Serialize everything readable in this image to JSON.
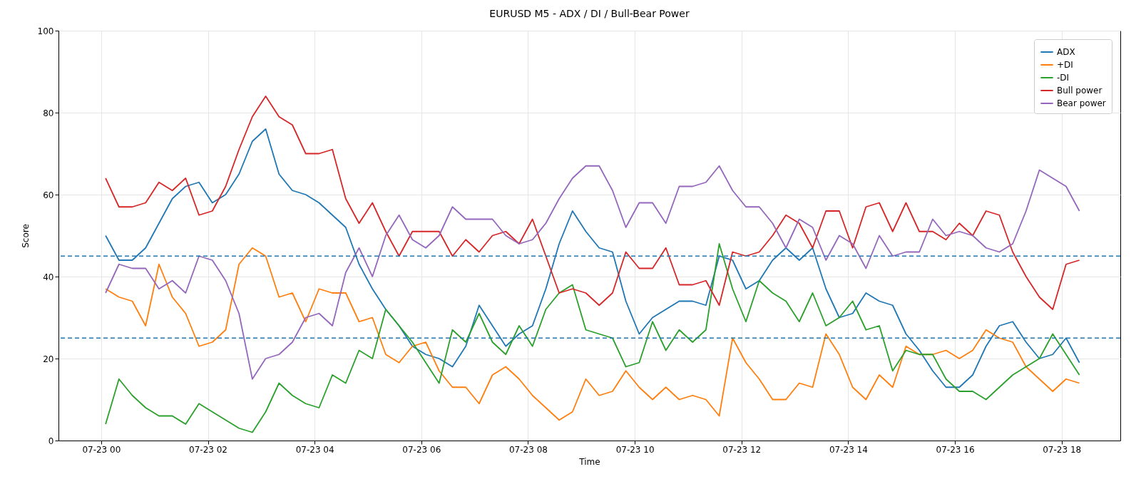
{
  "chart_data": {
    "type": "line",
    "title": "EURUSD M5 - ADX / DI / Bull-Bear Power",
    "xlabel": "Time",
    "ylabel": "Score",
    "x": [
      "--07-23T00:05",
      "--07-23T00:20",
      "--07-23T00:35",
      "--07-23T00:50",
      "--07-23T01:05",
      "--07-23T01:20",
      "--07-23T01:35",
      "--07-23T01:50",
      "--07-23T02:05",
      "--07-23T02:20",
      "--07-23T02:35",
      "--07-23T02:50",
      "--07-23T03:05",
      "--07-23T03:20",
      "--07-23T03:35",
      "--07-23T03:50",
      "--07-23T04:05",
      "--07-23T04:20",
      "--07-23T04:35",
      "--07-23T04:50",
      "--07-23T05:05",
      "--07-23T05:20",
      "--07-23T05:35",
      "--07-23T05:50",
      "--07-23T06:05",
      "--07-23T06:20",
      "--07-23T06:35",
      "--07-23T06:50",
      "--07-23T07:05",
      "--07-23T07:20",
      "--07-23T07:35",
      "--07-23T07:50",
      "--07-23T08:05",
      "--07-23T08:20",
      "--07-23T08:35",
      "--07-23T08:50",
      "--07-23T09:05",
      "--07-23T09:20",
      "--07-23T09:35",
      "--07-23T09:50",
      "--07-23T10:05",
      "--07-23T10:20",
      "--07-23T10:35",
      "--07-23T10:50",
      "--07-23T11:05",
      "--07-23T11:20",
      "--07-23T11:35",
      "--07-23T11:50",
      "--07-23T12:05",
      "--07-23T12:20",
      "--07-23T12:35",
      "--07-23T12:50",
      "--07-23T13:05",
      "--07-23T13:20",
      "--07-23T13:35",
      "--07-23T13:50",
      "--07-23T14:05",
      "--07-23T14:20",
      "--07-23T14:35",
      "--07-23T14:50",
      "--07-23T15:05",
      "--07-23T15:20",
      "--07-23T15:35",
      "--07-23T15:50",
      "--07-23T16:05",
      "--07-23T16:20",
      "--07-23T16:35",
      "--07-23T16:50",
      "--07-23T17:05",
      "--07-23T17:20",
      "--07-23T17:35",
      "--07-23T17:50",
      "--07-23T18:05",
      "--07-23T18:20"
    ],
    "series": [
      {
        "name": "ADX",
        "color": "#1f77b4",
        "values": [
          50,
          44,
          44,
          47,
          53,
          59,
          62,
          63,
          58,
          60,
          65,
          73,
          76,
          65,
          61,
          60,
          58,
          55,
          52,
          43,
          37,
          32,
          28,
          23,
          21,
          20,
          18,
          23,
          33,
          28,
          23,
          26,
          28,
          37,
          48,
          56,
          51,
          47,
          46,
          34,
          26,
          30,
          32,
          34,
          34,
          33,
          45,
          44,
          37,
          39,
          44,
          47,
          44,
          47,
          37,
          30,
          31,
          36,
          34,
          33,
          26,
          22,
          17,
          13,
          13,
          16,
          23,
          28,
          29,
          24,
          20,
          21,
          25,
          19
        ]
      },
      {
        "name": "+DI",
        "color": "#ff7f0e",
        "values": [
          37,
          35,
          34,
          28,
          43,
          35,
          31,
          23,
          24,
          27,
          43,
          47,
          45,
          35,
          36,
          29,
          37,
          36,
          36,
          29,
          30,
          21,
          19,
          23,
          24,
          17,
          13,
          13,
          9,
          16,
          18,
          15,
          11,
          8,
          5,
          7,
          15,
          11,
          12,
          17,
          13,
          10,
          13,
          10,
          11,
          10,
          6,
          25,
          19,
          15,
          10,
          10,
          14,
          13,
          26,
          21,
          13,
          10,
          16,
          13,
          23,
          21,
          21,
          22,
          20,
          22,
          27,
          25,
          24,
          18,
          15,
          12,
          15,
          14
        ]
      },
      {
        "name": "-DI",
        "color": "#2ca02c",
        "values": [
          4,
          15,
          11,
          8,
          6,
          6,
          4,
          9,
          7,
          5,
          3,
          2,
          7,
          14,
          11,
          9,
          8,
          16,
          14,
          22,
          20,
          32,
          28,
          24,
          19,
          14,
          27,
          24,
          31,
          24,
          21,
          28,
          23,
          32,
          36,
          38,
          27,
          26,
          25,
          18,
          19,
          29,
          22,
          27,
          24,
          27,
          48,
          37,
          29,
          39,
          36,
          34,
          29,
          36,
          28,
          30,
          34,
          27,
          28,
          17,
          22,
          21,
          21,
          15,
          12,
          12,
          10,
          13,
          16,
          18,
          20,
          26,
          21,
          16
        ]
      },
      {
        "name": "Bull power",
        "color": "#d62728",
        "values": [
          64,
          57,
          57,
          58,
          63,
          61,
          64,
          55,
          56,
          62,
          71,
          79,
          84,
          79,
          77,
          70,
          70,
          71,
          59,
          53,
          58,
          51,
          45,
          51,
          51,
          51,
          45,
          49,
          46,
          50,
          51,
          48,
          54,
          45,
          36,
          37,
          36,
          33,
          36,
          46,
          42,
          42,
          47,
          38,
          38,
          39,
          33,
          46,
          45,
          46,
          50,
          55,
          53,
          47,
          56,
          56,
          47,
          57,
          58,
          51,
          58,
          51,
          51,
          49,
          53,
          50,
          56,
          55,
          46,
          40,
          35,
          32,
          43,
          44
        ]
      },
      {
        "name": "Bear power",
        "color": "#9467bd",
        "values": [
          36,
          43,
          42,
          42,
          37,
          39,
          36,
          45,
          44,
          39,
          31,
          15,
          20,
          21,
          24,
          30,
          31,
          28,
          41,
          47,
          40,
          50,
          55,
          49,
          47,
          50,
          57,
          54,
          54,
          54,
          50,
          48,
          49,
          53,
          59,
          64,
          67,
          67,
          61,
          52,
          58,
          58,
          53,
          62,
          62,
          63,
          67,
          61,
          57,
          57,
          53,
          47,
          54,
          52,
          44,
          50,
          48,
          42,
          50,
          45,
          46,
          46,
          54,
          50,
          51,
          50,
          47,
          46,
          48,
          56,
          66,
          64,
          62,
          56
        ]
      }
    ],
    "xlim": [
      "--07-22T23:12",
      "--07-23T19:06"
    ],
    "xticks": [
      {
        "value": "--07-23T00:00",
        "label": "07-23 00"
      },
      {
        "value": "--07-23T02:00",
        "label": "07-23 02"
      },
      {
        "value": "--07-23T04:00",
        "label": "07-23 04"
      },
      {
        "value": "--07-23T06:00",
        "label": "07-23 06"
      },
      {
        "value": "--07-23T08:00",
        "label": "07-23 08"
      },
      {
        "value": "--07-23T10:00",
        "label": "07-23 10"
      },
      {
        "value": "--07-23T12:00",
        "label": "07-23 12"
      },
      {
        "value": "--07-23T14:00",
        "label": "07-23 14"
      },
      {
        "value": "--07-23T16:00",
        "label": "07-23 16"
      },
      {
        "value": "--07-23T18:00",
        "label": "07-23 18"
      }
    ],
    "ylim": [
      0,
      100
    ],
    "yticks": [
      0,
      20,
      40,
      60,
      80,
      100
    ],
    "ref_lines": [
      {
        "axis": "y",
        "value": 45,
        "color": "#1f77b4",
        "line_style": "dashed"
      },
      {
        "axis": "y",
        "value": 25,
        "color": "#1f77b4",
        "line_style": "dashed"
      }
    ],
    "grid": true,
    "legend": "top right"
  }
}
